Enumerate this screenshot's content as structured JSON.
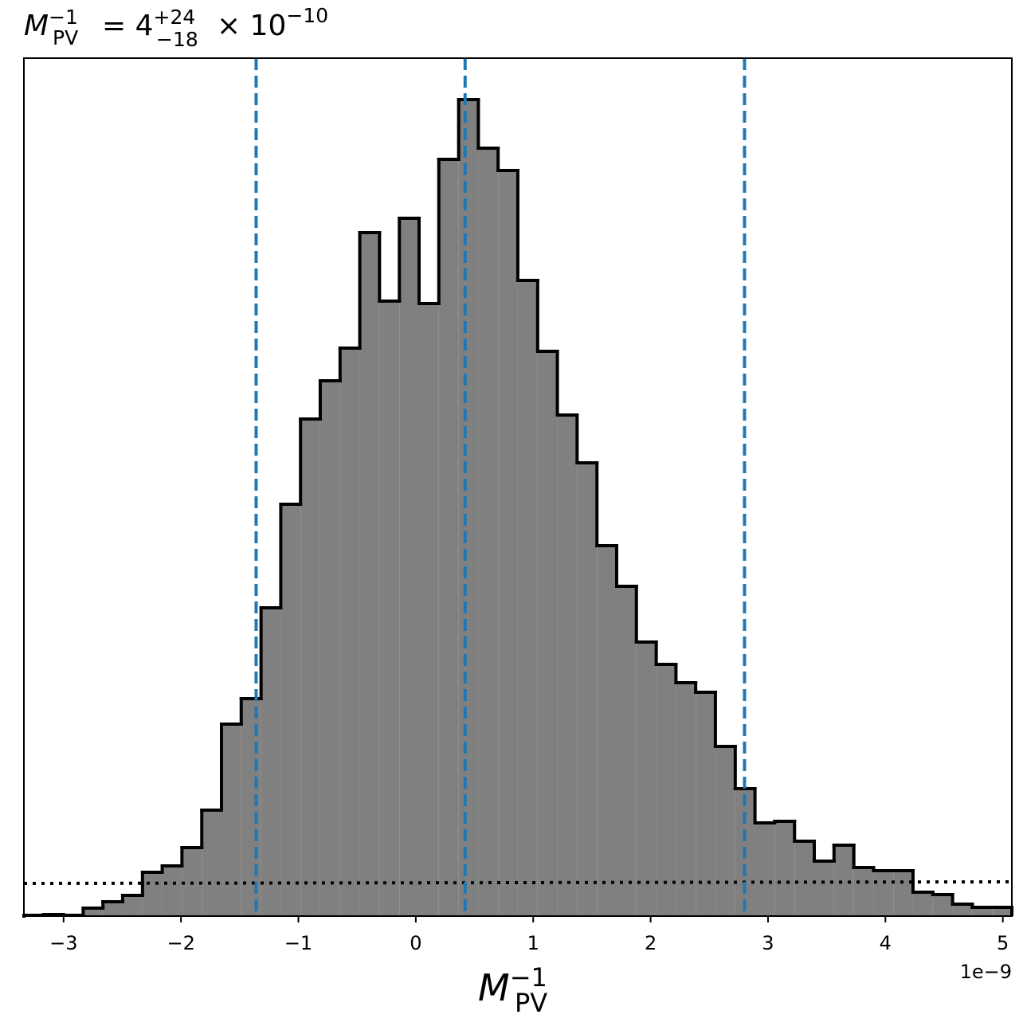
{
  "chart_data": {
    "type": "histogram",
    "title": {
      "symbol": "M",
      "sub": "PV",
      "sup": "−1",
      "eq": "= 4",
      "upper": "+24",
      "lower": "−18",
      "times": "× 10",
      "exp": "−10"
    },
    "xlabel": {
      "symbol": "M",
      "sub": "PV",
      "sup": "−1"
    },
    "x_offset_label": "1e−9",
    "bins": [
      -3.338,
      -3.17,
      -3.001,
      -2.833,
      -2.665,
      -2.497,
      -2.328,
      -2.16,
      -1.992,
      -1.823,
      -1.655,
      -1.487,
      -1.318,
      -1.15,
      -0.982,
      -0.814,
      -0.645,
      -0.477,
      -0.309,
      -0.14,
      0.028,
      0.196,
      0.365,
      0.533,
      0.701,
      0.869,
      1.038,
      1.206,
      1.374,
      1.543,
      1.711,
      1.879,
      2.048,
      2.216,
      2.384,
      2.552,
      2.721,
      2.889,
      3.057,
      3.226,
      3.394,
      3.562,
      3.731,
      3.899,
      4.067,
      4.235,
      4.404,
      4.572,
      4.74,
      4.909,
      5.077
    ],
    "values": [
      1,
      2,
      1,
      10,
      18,
      26,
      55,
      63,
      86,
      133,
      241,
      273,
      387,
      517,
      624,
      672,
      713,
      858,
      772,
      876,
      769,
      950,
      1025,
      964,
      936,
      798,
      709,
      629,
      569,
      465,
      414,
      344,
      316,
      293,
      281,
      213,
      160,
      117,
      119,
      94,
      69,
      89,
      61,
      57,
      57,
      30,
      27,
      15,
      11,
      11
    ],
    "color": "#808080",
    "edge_color": "#000000",
    "quantiles": [
      -1.36,
      0.42,
      2.8
    ],
    "quantile_color": "#1f77b4",
    "prior": {
      "x": [
        -3.338,
        5.077
      ],
      "values": [
        41,
        43
      ],
      "color": "#000000"
    },
    "xlim": [
      -3.338,
      5.077
    ],
    "ylim": [
      0,
      1077
    ],
    "xticks": [
      {
        "value": -3,
        "label": "−3"
      },
      {
        "value": -2,
        "label": "−2"
      },
      {
        "value": -1,
        "label": "−1"
      },
      0,
      1,
      2,
      3,
      4,
      5
    ]
  }
}
